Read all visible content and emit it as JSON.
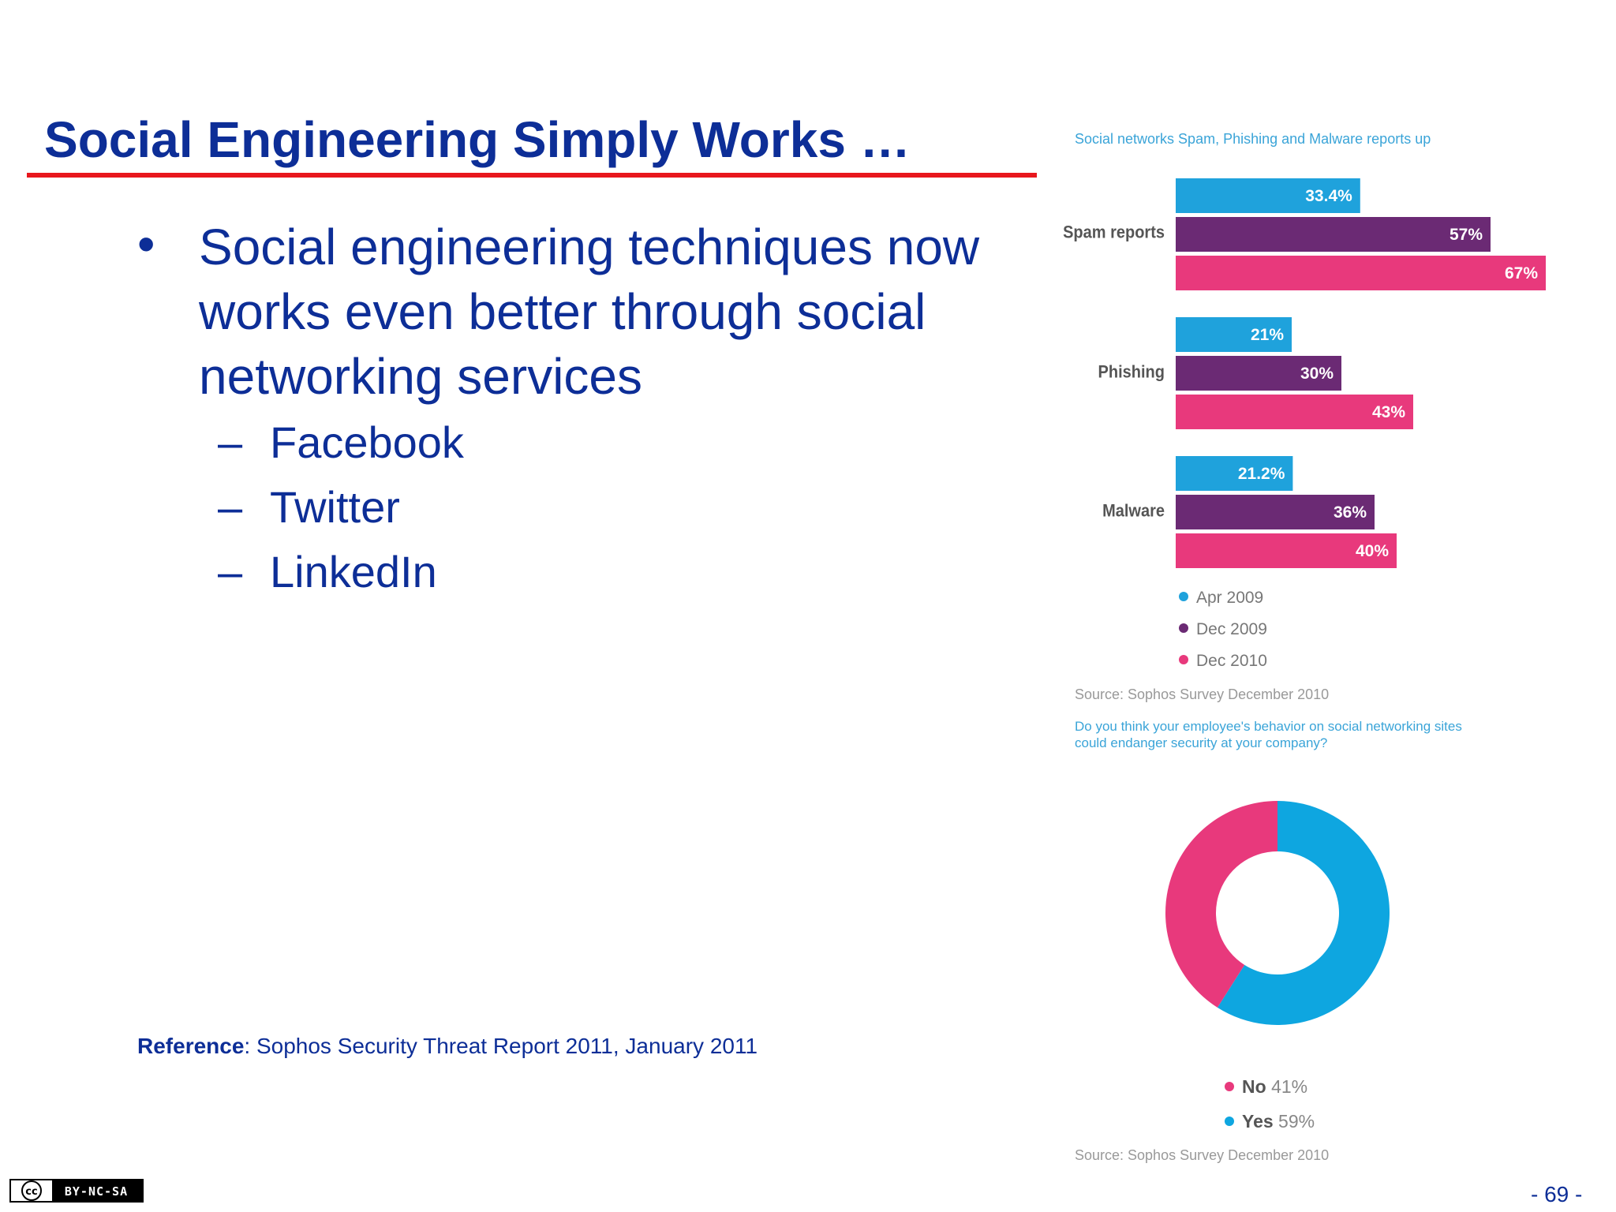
{
  "slide": {
    "title": "Social Engineering Simply Works …",
    "bullet_symbol": "•",
    "bullet": "Social engineering techniques now works even better through social networking services",
    "dash_symbol": "–",
    "subitems": [
      "Facebook",
      "Twitter",
      "LinkedIn"
    ],
    "reference_label": "Reference",
    "reference_text": ": Sophos Security Threat Report 2011, January 2011",
    "page_number": "- 69 -",
    "license_badge": "BY-NC-SA",
    "rule_color": "#e8171d",
    "text_color": "#0d2e97"
  },
  "infographic": {
    "title": "Social networks Spam, Phishing and Malware reports up",
    "source_1": "Source: Sophos Survey December 2010",
    "question": "Do you think your employee's behavior on social networking sites could endanger security at your company?",
    "source_2": "Source: Sophos Survey December 2010"
  },
  "chart_data": [
    {
      "type": "bar",
      "orientation": "horizontal",
      "title": "Social networks Spam, Phishing and Malware reports up",
      "categories": [
        "Spam reports",
        "Phishing",
        "Malware"
      ],
      "series": [
        {
          "name": "Apr 2009",
          "color": "#1fa2dc",
          "values": [
            33.4,
            21,
            21.2
          ],
          "labels": [
            "33.4%",
            "21%",
            "21.2%"
          ]
        },
        {
          "name": "Dec 2009",
          "color": "#6b2a74",
          "values": [
            57,
            30,
            36
          ],
          "labels": [
            "57%",
            "30%",
            "36%"
          ]
        },
        {
          "name": "Dec 2010",
          "color": "#e8397c",
          "values": [
            67,
            43,
            40
          ],
          "labels": [
            "67%",
            "43%",
            "40%"
          ]
        }
      ],
      "xlim": [
        0,
        100
      ],
      "legend_position": "bottom"
    },
    {
      "type": "pie",
      "style": "donut",
      "slices": [
        {
          "name": "No",
          "value": 41,
          "label": "41%",
          "color": "#e8397c"
        },
        {
          "name": "Yes",
          "value": 59,
          "label": "59%",
          "color": "#0ea6e0"
        }
      ],
      "legend_position": "bottom"
    }
  ]
}
